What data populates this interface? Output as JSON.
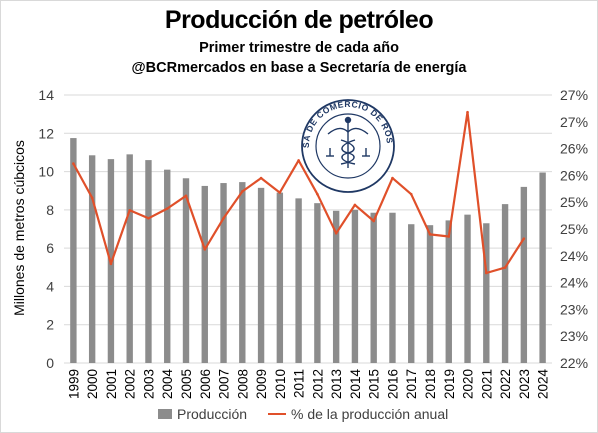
{
  "header": {
    "title": "Producción de petróleo",
    "subtitle1": "Primer trimestre de cada año",
    "subtitle2": "@BCRmercados en base a Secretaría de energía"
  },
  "seal": {
    "lettering": "BOLSA DE COMERCIO DE ROSARIO"
  },
  "legend": {
    "bar_label": "Producción",
    "line_label": "% de la producción anual"
  },
  "colors": {
    "bar": "#8c8c8c",
    "line": "#e0502a",
    "text": "#404040",
    "grid": "#d9d9d9"
  },
  "chart_data": {
    "type": "bar",
    "categories": [
      "1999",
      "2000",
      "2001",
      "2002",
      "2003",
      "2004",
      "2005",
      "2006",
      "2007",
      "2008",
      "2009",
      "2010",
      "2011",
      "2012",
      "2013",
      "2014",
      "2015",
      "2016",
      "2017",
      "2018",
      "2019",
      "2020",
      "2021",
      "2022",
      "2023",
      "2024"
    ],
    "series": [
      {
        "name": "Producción",
        "type": "bar",
        "axis": "left",
        "values": [
          11.75,
          10.85,
          10.65,
          10.9,
          10.6,
          10.1,
          9.65,
          9.25,
          9.4,
          9.45,
          9.15,
          8.9,
          8.6,
          8.35,
          7.95,
          8.0,
          7.85,
          7.85,
          7.25,
          7.2,
          7.45,
          7.75,
          7.3,
          8.3,
          9.2,
          9.95
        ]
      },
      {
        "name": "% de la producción anual",
        "type": "line",
        "axis": "right",
        "values": [
          25.72,
          25.08,
          23.85,
          24.85,
          24.7,
          24.88,
          25.12,
          24.12,
          24.7,
          25.2,
          25.45,
          25.18,
          25.78,
          25.15,
          24.42,
          24.95,
          24.65,
          25.45,
          25.15,
          24.4,
          24.36,
          26.68,
          23.68,
          23.78,
          24.32,
          null
        ]
      }
    ],
    "ylabel": "Millones de metros cúbcicos",
    "y_left_ticks": [
      "0",
      "2",
      "4",
      "6",
      "8",
      "10",
      "12",
      "14"
    ],
    "ylim_left": [
      0,
      14
    ],
    "y_right_ticks": [
      "22%",
      "23%",
      "23%",
      "24%",
      "24%",
      "25%",
      "25%",
      "26%",
      "26%",
      "27%",
      "27%"
    ],
    "ylim_right": [
      22,
      27
    ],
    "grid": true,
    "legend_position": "bottom"
  }
}
